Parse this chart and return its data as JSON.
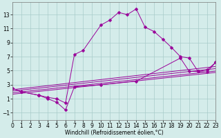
{
  "bg_color": "#d4ecea",
  "line_color": "#990099",
  "grid_color": "#a8ccca",
  "xlabel": "Windchill (Refroidissement éolien,°C)",
  "xlim": [
    0,
    23
  ],
  "ylim": [
    -2,
    14.8
  ],
  "xticks": [
    0,
    1,
    2,
    3,
    4,
    5,
    6,
    7,
    8,
    9,
    10,
    11,
    12,
    13,
    14,
    15,
    16,
    17,
    18,
    19,
    20,
    21,
    22,
    23
  ],
  "yticks": [
    -1,
    1,
    3,
    5,
    7,
    9,
    11,
    13
  ],
  "upper_x": [
    0,
    1,
    3,
    4,
    5,
    6,
    7,
    8,
    10,
    11,
    12,
    13,
    14,
    15,
    16,
    17,
    18,
    19,
    20,
    21,
    22,
    23
  ],
  "upper_y": [
    2.5,
    2.0,
    1.5,
    1.2,
    1.0,
    0.4,
    7.3,
    7.9,
    11.5,
    12.2,
    13.3,
    13.0,
    13.8,
    11.2,
    10.6,
    9.5,
    8.3,
    7.0,
    6.8,
    4.9,
    4.8,
    6.2
  ],
  "lower_x": [
    0,
    1,
    3,
    4,
    5,
    6,
    7,
    10,
    14,
    19,
    20,
    21,
    22,
    23
  ],
  "lower_y": [
    2.5,
    2.0,
    1.5,
    1.0,
    0.5,
    -0.6,
    2.7,
    3.0,
    3.5,
    6.8,
    4.9,
    4.9,
    5.1,
    6.2
  ],
  "line1_x": [
    0,
    23
  ],
  "line1_y": [
    2.3,
    5.6
  ],
  "line2_x": [
    0,
    23
  ],
  "line2_y": [
    2.1,
    5.3
  ],
  "line3_x": [
    0,
    23
  ],
  "line3_y": [
    1.85,
    4.95
  ],
  "line4_x": [
    0,
    23
  ],
  "line4_y": [
    1.65,
    4.75
  ],
  "markersize": 2.5,
  "lw": 0.7,
  "tick_labelsize": 5.5,
  "xlabel_fontsize": 5.5
}
